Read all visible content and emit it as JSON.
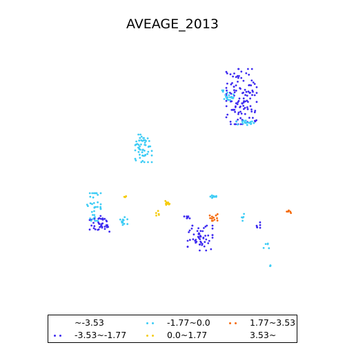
{
  "chart_data": {
    "type": "scatter",
    "title": "AVEAGE_2013",
    "xlabel": "",
    "ylabel": "",
    "grid": false,
    "axes_visible": false,
    "legend_position": "bottom",
    "series": [
      {
        "name": "~-3.53",
        "color": "#2a1ce8",
        "clusters": []
      },
      {
        "name": "-3.53~-1.77",
        "color": "#3d2af0",
        "clusters": [
          {
            "cx": 350,
            "cy": 140,
            "rx": 22,
            "ry": 40,
            "n": 120
          },
          {
            "cx": 145,
            "cy": 325,
            "rx": 15,
            "ry": 12,
            "n": 40
          },
          {
            "cx": 290,
            "cy": 345,
            "rx": 18,
            "ry": 18,
            "n": 55
          },
          {
            "cx": 271,
            "cy": 315,
            "rx": 4,
            "ry": 3,
            "n": 6
          },
          {
            "cx": 372,
            "cy": 327,
            "rx": 5,
            "ry": 5,
            "n": 6
          }
        ]
      },
      {
        "name": "-1.77~0.0",
        "color": "#3dccf5",
        "clusters": [
          {
            "cx": 208,
            "cy": 215,
            "rx": 12,
            "ry": 20,
            "n": 55
          },
          {
            "cx": 136,
            "cy": 300,
            "rx": 10,
            "ry": 20,
            "n": 35
          },
          {
            "cx": 332,
            "cy": 138,
            "rx": 10,
            "ry": 7,
            "n": 20
          },
          {
            "cx": 357,
            "cy": 178,
            "rx": 15,
            "ry": 5,
            "n": 20
          },
          {
            "cx": 310,
            "cy": 285,
            "rx": 5,
            "ry": 3,
            "n": 10
          },
          {
            "cx": 180,
            "cy": 320,
            "rx": 8,
            "ry": 6,
            "n": 12
          },
          {
            "cx": 352,
            "cy": 315,
            "rx": 3,
            "ry": 5,
            "n": 5
          },
          {
            "cx": 385,
            "cy": 355,
            "rx": 5,
            "ry": 5,
            "n": 5
          },
          {
            "cx": 392,
            "cy": 385,
            "rx": 2,
            "ry": 1,
            "n": 3
          }
        ]
      },
      {
        "name": "0.0~1.77",
        "color": "#f5cc10",
        "clusters": [
          {
            "cx": 242,
            "cy": 294,
            "rx": 4,
            "ry": 3,
            "n": 10
          },
          {
            "cx": 229,
            "cy": 308,
            "rx": 3,
            "ry": 5,
            "n": 5
          },
          {
            "cx": 180,
            "cy": 285,
            "rx": 5,
            "ry": 3,
            "n": 4
          }
        ]
      },
      {
        "name": "1.77~3.53",
        "color": "#f56a0a",
        "clusters": [
          {
            "cx": 310,
            "cy": 315,
            "rx": 6,
            "ry": 5,
            "n": 12
          },
          {
            "cx": 418,
            "cy": 307,
            "rx": 4,
            "ry": 2,
            "n": 6
          }
        ]
      },
      {
        "name": "3.53~",
        "color": "#c80000",
        "clusters": []
      }
    ]
  }
}
